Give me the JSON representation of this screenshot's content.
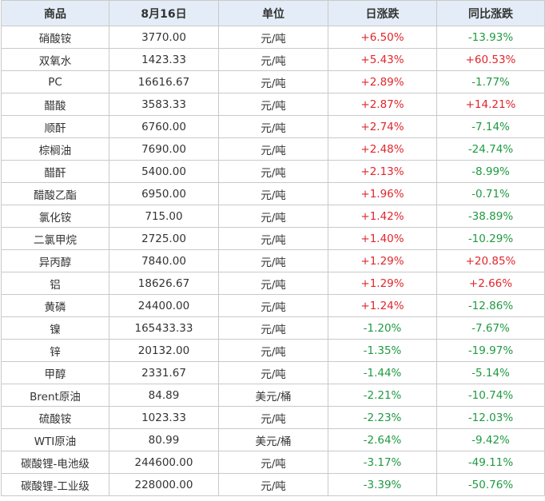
{
  "table": {
    "headers": [
      "商品",
      "8月16日",
      "单位",
      "日涨跌",
      "同比涨跌"
    ],
    "rows": [
      {
        "name": "硝酸铵",
        "price": "3770.00",
        "unit": "元/吨",
        "day": "+6.50%",
        "yoy": "-13.93%"
      },
      {
        "name": "双氧水",
        "price": "1423.33",
        "unit": "元/吨",
        "day": "+5.43%",
        "yoy": "+60.53%"
      },
      {
        "name": "PC",
        "price": "16616.67",
        "unit": "元/吨",
        "day": "+2.89%",
        "yoy": "-1.77%"
      },
      {
        "name": "醋酸",
        "price": "3583.33",
        "unit": "元/吨",
        "day": "+2.87%",
        "yoy": "+14.21%"
      },
      {
        "name": "顺酐",
        "price": "6760.00",
        "unit": "元/吨",
        "day": "+2.74%",
        "yoy": "-7.14%"
      },
      {
        "name": "棕榈油",
        "price": "7690.00",
        "unit": "元/吨",
        "day": "+2.48%",
        "yoy": "-24.74%"
      },
      {
        "name": "醋酐",
        "price": "5400.00",
        "unit": "元/吨",
        "day": "+2.13%",
        "yoy": "-8.99%"
      },
      {
        "name": "醋酸乙酯",
        "price": "6950.00",
        "unit": "元/吨",
        "day": "+1.96%",
        "yoy": "-0.71%"
      },
      {
        "name": "氯化铵",
        "price": "715.00",
        "unit": "元/吨",
        "day": "+1.42%",
        "yoy": "-38.89%"
      },
      {
        "name": "二氯甲烷",
        "price": "2725.00",
        "unit": "元/吨",
        "day": "+1.40%",
        "yoy": "-10.29%"
      },
      {
        "name": "异丙醇",
        "price": "7840.00",
        "unit": "元/吨",
        "day": "+1.29%",
        "yoy": "+20.85%"
      },
      {
        "name": "铝",
        "price": "18626.67",
        "unit": "元/吨",
        "day": "+1.29%",
        "yoy": "+2.66%"
      },
      {
        "name": "黄磷",
        "price": "24400.00",
        "unit": "元/吨",
        "day": "+1.24%",
        "yoy": "-12.86%"
      },
      {
        "name": "镍",
        "price": "165433.33",
        "unit": "元/吨",
        "day": "-1.20%",
        "yoy": "-7.67%"
      },
      {
        "name": "锌",
        "price": "20132.00",
        "unit": "元/吨",
        "day": "-1.35%",
        "yoy": "-19.97%"
      },
      {
        "name": "甲醇",
        "price": "2331.67",
        "unit": "元/吨",
        "day": "-1.44%",
        "yoy": "-5.14%"
      },
      {
        "name": "Brent原油",
        "price": "84.89",
        "unit": "美元/桶",
        "day": "-2.21%",
        "yoy": "-10.74%"
      },
      {
        "name": "硫酸铵",
        "price": "1023.33",
        "unit": "元/吨",
        "day": "-2.23%",
        "yoy": "-12.03%"
      },
      {
        "name": "WTI原油",
        "price": "80.99",
        "unit": "美元/桶",
        "day": "-2.64%",
        "yoy": "-9.42%"
      },
      {
        "name": "碳酸锂-电池级",
        "price": "244600.00",
        "unit": "元/吨",
        "day": "-3.17%",
        "yoy": "-49.11%"
      },
      {
        "name": "碳酸锂-工业级",
        "price": "228000.00",
        "unit": "元/吨",
        "day": "-3.39%",
        "yoy": "-50.76%"
      }
    ]
  },
  "colors": {
    "up": "#e0262b",
    "down": "#1f9a41",
    "header_bg": "#e4edf7",
    "border": "#c9c9c9"
  }
}
